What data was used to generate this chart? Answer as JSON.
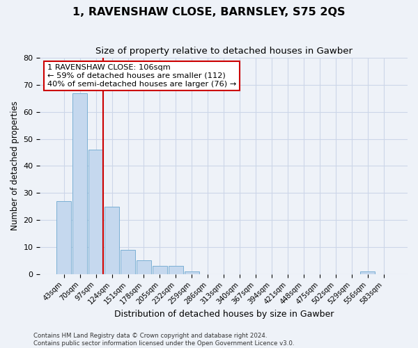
{
  "title": "1, RAVENSHAW CLOSE, BARNSLEY, S75 2QS",
  "subtitle": "Size of property relative to detached houses in Gawber",
  "xlabel": "Distribution of detached houses by size in Gawber",
  "ylabel": "Number of detached properties",
  "bar_labels": [
    "43sqm",
    "70sqm",
    "97sqm",
    "124sqm",
    "151sqm",
    "178sqm",
    "205sqm",
    "232sqm",
    "259sqm",
    "286sqm",
    "313sqm",
    "340sqm",
    "367sqm",
    "394sqm",
    "421sqm",
    "448sqm",
    "475sqm",
    "502sqm",
    "529sqm",
    "556sqm",
    "583sqm"
  ],
  "bar_values": [
    27,
    67,
    46,
    25,
    9,
    5,
    3,
    3,
    1,
    0,
    0,
    0,
    0,
    0,
    0,
    0,
    0,
    0,
    0,
    1,
    0
  ],
  "bar_color": "#c5d8ee",
  "bar_edge_color": "#7aafd4",
  "grid_color": "#ccd6e8",
  "background_color": "#eef2f8",
  "vline_color": "#cc0000",
  "annotation_text": "1 RAVENSHAW CLOSE: 106sqm\n← 59% of detached houses are smaller (112)\n40% of semi-detached houses are larger (76) →",
  "annotation_box_color": "#ffffff",
  "annotation_box_edge_color": "#cc0000",
  "ylim": [
    0,
    80
  ],
  "yticks": [
    0,
    10,
    20,
    30,
    40,
    50,
    60,
    70,
    80
  ],
  "footer_line1": "Contains HM Land Registry data © Crown copyright and database right 2024.",
  "footer_line2": "Contains public sector information licensed under the Open Government Licence v3.0."
}
